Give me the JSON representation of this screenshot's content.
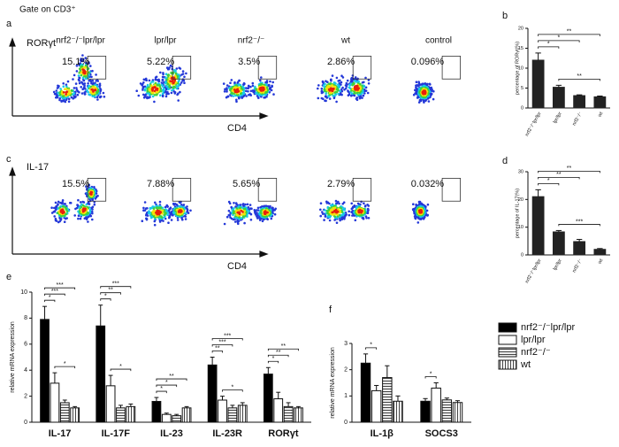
{
  "gate_label": "Gate on CD3⁺",
  "panel_labels": [
    "a",
    "b",
    "c",
    "d",
    "e",
    "f"
  ],
  "flow": [
    {
      "y_label": "RORγt",
      "x_label": "CD4",
      "plots": [
        {
          "title": "nrf2⁻/⁻lpr/lpr",
          "percent": "15.1%"
        },
        {
          "title": "lpr/lpr",
          "percent": "5.22%"
        },
        {
          "title": "nrf2⁻/⁻",
          "percent": "3.5%"
        },
        {
          "title": "wt",
          "percent": "2.86%"
        },
        {
          "title": "control",
          "percent": "0.096%"
        }
      ]
    },
    {
      "y_label": "IL-17",
      "x_label": "CD4",
      "plots": [
        {
          "percent": "15.5%"
        },
        {
          "percent": "7.88%"
        },
        {
          "percent": "5.65%"
        },
        {
          "percent": "2.79%"
        },
        {
          "percent": "0.032%"
        }
      ]
    }
  ],
  "charts": {
    "b": {
      "type": "bar",
      "y_label": "percentage of RORγt(%)",
      "categories": [
        "nrf2⁻/⁻lpr/lpr",
        "lpr/lpr",
        "nrf2⁻/⁻",
        "wt"
      ],
      "values": [
        12,
        5.2,
        3.1,
        2.8
      ],
      "errors": [
        1.8,
        0.5,
        0.2,
        0.2
      ],
      "color": "#222222",
      "ylim": [
        0,
        20
      ],
      "yticks": [
        0,
        5,
        10,
        15,
        20
      ],
      "brackets": [
        {
          "label": "**",
          "between": [
            0,
            3
          ]
        },
        {
          "label": "*",
          "between": [
            0,
            2
          ]
        },
        {
          "label": "*",
          "between": [
            0,
            1
          ]
        },
        {
          "label": "**",
          "between": [
            1,
            3
          ]
        }
      ]
    },
    "d": {
      "type": "bar",
      "y_label": "percentage of IL-17(%)",
      "categories": [
        "nrf2⁻/⁻lpr/lpr",
        "lpr/lpr",
        "nrf2⁻/⁻",
        "wt"
      ],
      "values": [
        21,
        8.3,
        4.8,
        2
      ],
      "errors": [
        2.5,
        0.5,
        0.8,
        0.3
      ],
      "color": "#222222",
      "ylim": [
        0,
        30
      ],
      "yticks": [
        0,
        10,
        20,
        30
      ],
      "brackets": [
        {
          "label": "**",
          "between": [
            0,
            3
          ]
        },
        {
          "label": "**",
          "between": [
            0,
            2
          ]
        },
        {
          "label": "*",
          "between": [
            0,
            1
          ]
        },
        {
          "label": "***",
          "between": [
            1,
            3
          ]
        }
      ]
    },
    "e": {
      "type": "grouped-bar",
      "y_label": "relative mRNA expression",
      "categories": [
        "IL-17",
        "IL-17F",
        "IL-23",
        "IL-23R",
        "RORγt"
      ],
      "series": [
        {
          "name": "nrf2⁻/⁻lpr/lpr",
          "fill": "black",
          "values": [
            7.9,
            7.4,
            1.6,
            4.4,
            3.7
          ],
          "errors": [
            1.0,
            1.6,
            0.3,
            0.6,
            0.5
          ]
        },
        {
          "name": "lpr/lpr",
          "fill": "white",
          "values": [
            3.0,
            2.8,
            0.6,
            1.7,
            1.8
          ],
          "errors": [
            0.8,
            0.8,
            0.1,
            0.3,
            0.5
          ]
        },
        {
          "name": "nrf2⁻/⁻",
          "fill": "hatch-horizontal",
          "values": [
            1.5,
            1.1,
            0.5,
            1.1,
            1.2
          ],
          "errors": [
            0.2,
            0.2,
            0.1,
            0.2,
            0.3
          ]
        },
        {
          "name": "wt",
          "fill": "hatch-vertical",
          "values": [
            1.1,
            1.2,
            1.1,
            1.3,
            1.1
          ],
          "errors": [
            0.1,
            0.2,
            0.1,
            0.2,
            0.1
          ]
        }
      ],
      "ylim": [
        0,
        10
      ],
      "yticks": [
        0,
        2,
        4,
        6,
        8,
        10
      ],
      "brackets": [
        {
          "group": 0,
          "label": "***",
          "between": [
            0,
            3
          ]
        },
        {
          "group": 0,
          "label": "***",
          "between": [
            0,
            2
          ]
        },
        {
          "group": 0,
          "label": "*",
          "between": [
            0,
            1
          ]
        },
        {
          "group": 0,
          "label": "*",
          "between": [
            1,
            3
          ]
        },
        {
          "group": 1,
          "label": "***",
          "between": [
            0,
            3
          ]
        },
        {
          "group": 1,
          "label": "**",
          "between": [
            0,
            2
          ]
        },
        {
          "group": 1,
          "label": "*",
          "between": [
            0,
            1
          ]
        },
        {
          "group": 1,
          "label": "*",
          "between": [
            1,
            3
          ]
        },
        {
          "group": 2,
          "label": "**",
          "between": [
            0,
            3
          ]
        },
        {
          "group": 2,
          "label": "*",
          "between": [
            0,
            2
          ]
        },
        {
          "group": 2,
          "label": "*",
          "between": [
            0,
            1
          ]
        },
        {
          "group": 3,
          "label": "***",
          "between": [
            0,
            3
          ]
        },
        {
          "group": 3,
          "label": "***",
          "between": [
            0,
            2
          ]
        },
        {
          "group": 3,
          "label": "**",
          "between": [
            0,
            1
          ]
        },
        {
          "group": 3,
          "label": "*",
          "between": [
            1,
            3
          ]
        },
        {
          "group": 4,
          "label": "**",
          "between": [
            0,
            3
          ]
        },
        {
          "group": 4,
          "label": "**",
          "between": [
            0,
            2
          ]
        },
        {
          "group": 4,
          "label": "*",
          "between": [
            0,
            1
          ]
        }
      ]
    },
    "f": {
      "type": "grouped-bar",
      "y_label": "relative mRNA expression",
      "categories": [
        "IL-1β",
        "SOCS3"
      ],
      "series": [
        {
          "fill": "black",
          "values": [
            2.25,
            0.8
          ],
          "errors": [
            0.35,
            0.1
          ]
        },
        {
          "fill": "white",
          "values": [
            1.2,
            1.3
          ],
          "errors": [
            0.2,
            0.2
          ]
        },
        {
          "fill": "hatch-horizontal",
          "values": [
            1.7,
            0.85
          ],
          "errors": [
            0.45,
            0.07
          ]
        },
        {
          "fill": "hatch-vertical",
          "values": [
            0.8,
            0.75
          ],
          "errors": [
            0.2,
            0.07
          ]
        }
      ],
      "ylim": [
        0,
        3
      ],
      "yticks": [
        0,
        1,
        2,
        3
      ],
      "brackets": [
        {
          "group": 0,
          "label": "*",
          "between": [
            0,
            1
          ]
        },
        {
          "group": 1,
          "label": "*",
          "between": [
            0,
            1
          ]
        }
      ]
    }
  }
}
